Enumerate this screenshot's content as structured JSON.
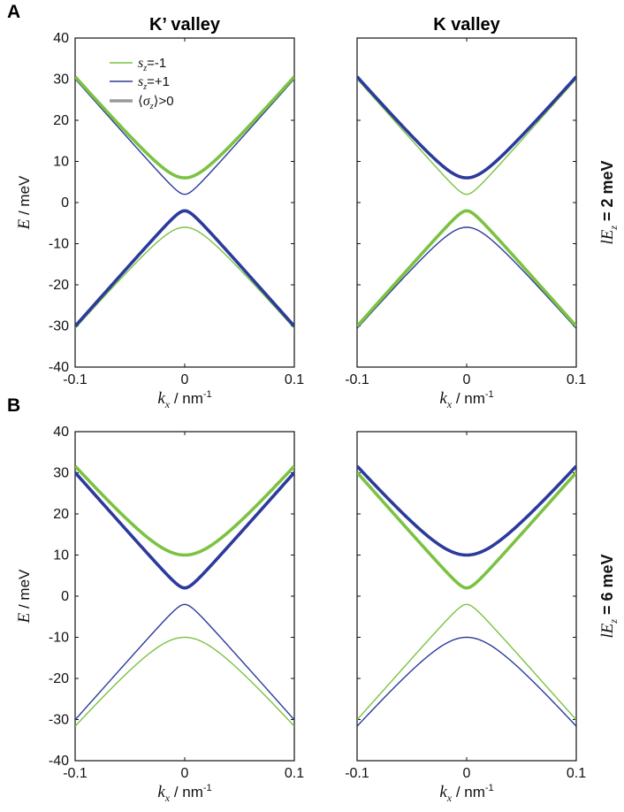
{
  "panel_letters": [
    "A",
    "B"
  ],
  "column_titles": [
    "K’ valley",
    "K valley"
  ],
  "row_labels": [
    {
      "math": "lE",
      "sub": "z",
      "text": " = 2 meV"
    },
    {
      "math": "lE",
      "sub": "z",
      "text": " = 6 meV"
    }
  ],
  "axis": {
    "y_label_math": "E",
    "y_label_text": " / meV",
    "x_label_math": "k",
    "x_label_sub": "x",
    "x_label_text": " / nm",
    "x_label_sup": "-1",
    "y_ticks": [
      "40",
      "30",
      "20",
      "10",
      "0",
      "-10",
      "-20",
      "-30",
      "-40"
    ],
    "x_ticks": [
      "-0.1",
      "0",
      "0.1"
    ]
  },
  "legend": {
    "entries": [
      {
        "math": "s",
        "sub": "z",
        "text": "=-1",
        "color": "#7cc242"
      },
      {
        "math": "s",
        "sub": "z",
        "text": "=+1",
        "color": "#2c3a9b"
      },
      {
        "open": "⟨",
        "math": "σ",
        "sub": "z",
        "close": "⟩",
        "text": ">0",
        "color": "#9a9a9a"
      }
    ]
  },
  "colors": {
    "green": "#7cc242",
    "blue": "#2c3a9b",
    "gray": "#9a9a9a"
  },
  "chart_data": [
    {
      "type": "line",
      "panel": "A",
      "valley": "K’ valley",
      "lEz_meV": 2,
      "xlim": [
        -0.1,
        0.1
      ],
      "ylim": [
        -40,
        40
      ],
      "series": [
        {
          "name": "s_z=-1 conduction",
          "color": "green",
          "gap": 6,
          "sign": 1,
          "bold": true
        },
        {
          "name": "s_z=+1 conduction",
          "color": "blue",
          "gap": 2,
          "sign": 1,
          "bold": false
        },
        {
          "name": "s_z=+1 valence",
          "color": "blue",
          "gap": 2,
          "sign": -1,
          "bold": true
        },
        {
          "name": "s_z=-1 valence",
          "color": "green",
          "gap": 6,
          "sign": -1,
          "bold": false
        }
      ]
    },
    {
      "type": "line",
      "panel": "A",
      "valley": "K valley",
      "lEz_meV": 2,
      "xlim": [
        -0.1,
        0.1
      ],
      "ylim": [
        -40,
        40
      ],
      "series": [
        {
          "name": "s_z=+1 conduction",
          "color": "blue",
          "gap": 6,
          "sign": 1,
          "bold": true
        },
        {
          "name": "s_z=-1 conduction",
          "color": "green",
          "gap": 2,
          "sign": 1,
          "bold": false
        },
        {
          "name": "s_z=-1 valence",
          "color": "green",
          "gap": 2,
          "sign": -1,
          "bold": true
        },
        {
          "name": "s_z=+1 valence",
          "color": "blue",
          "gap": 6,
          "sign": -1,
          "bold": false
        }
      ]
    },
    {
      "type": "line",
      "panel": "B",
      "valley": "K’ valley",
      "lEz_meV": 6,
      "xlim": [
        -0.1,
        0.1
      ],
      "ylim": [
        -40,
        40
      ],
      "series": [
        {
          "name": "s_z=-1 conduction",
          "color": "green",
          "gap": 10,
          "sign": 1,
          "bold": true
        },
        {
          "name": "s_z=+1 conduction",
          "color": "blue",
          "gap": 2,
          "sign": 1,
          "bold": true
        },
        {
          "name": "s_z=+1 valence",
          "color": "blue",
          "gap": 2,
          "sign": -1,
          "bold": false
        },
        {
          "name": "s_z=-1 valence",
          "color": "green",
          "gap": 10,
          "sign": -1,
          "bold": false
        }
      ]
    },
    {
      "type": "line",
      "panel": "B",
      "valley": "K valley",
      "lEz_meV": 6,
      "xlim": [
        -0.1,
        0.1
      ],
      "ylim": [
        -40,
        40
      ],
      "series": [
        {
          "name": "s_z=+1 conduction",
          "color": "blue",
          "gap": 10,
          "sign": 1,
          "bold": true
        },
        {
          "name": "s_z=-1 conduction",
          "color": "green",
          "gap": 2,
          "sign": 1,
          "bold": true
        },
        {
          "name": "s_z=-1 valence",
          "color": "green",
          "gap": 2,
          "sign": -1,
          "bold": false
        },
        {
          "name": "s_z=+1 valence",
          "color": "blue",
          "gap": 10,
          "sign": -1,
          "bold": false
        }
      ]
    }
  ],
  "band_model": {
    "formula": "E = ±sqrt(gap^2 + (v*k)^2)",
    "v_meV_nm": 300
  }
}
